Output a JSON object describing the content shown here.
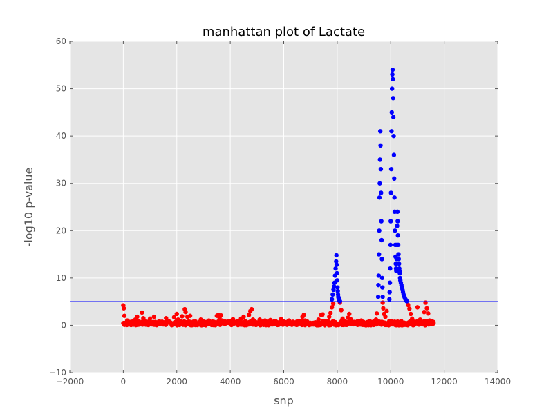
{
  "chart_data": {
    "type": "scatter",
    "title": "manhattan plot of Lactate",
    "xlabel": "snp",
    "ylabel": "-log10 p-value",
    "xlim": [
      -2000,
      14000
    ],
    "ylim": [
      -10,
      60
    ],
    "xticks": [
      "−2000",
      "0",
      "2000",
      "4000",
      "6000",
      "8000",
      "10000",
      "12000",
      "14000"
    ],
    "yticks": [
      "−10",
      "0",
      "10",
      "20",
      "30",
      "40",
      "50",
      "60"
    ],
    "xtick_values": [
      -2000,
      0,
      2000,
      4000,
      6000,
      8000,
      10000,
      12000,
      14000
    ],
    "ytick_values": [
      -10,
      0,
      10,
      20,
      30,
      40,
      50,
      60
    ],
    "grid": true,
    "threshold": 5,
    "colors": {
      "below_threshold": "#ff0000",
      "above_threshold": "#0000ff",
      "threshold_line": "#0000ff",
      "plot_background": "#e5e5e5",
      "grid": "#ffffff"
    },
    "series": [
      {
        "color": "red",
        "x": [
          0,
          20,
          40,
          80,
          150,
          250,
          350,
          450,
          520,
          600,
          700,
          750,
          800,
          900,
          1000,
          1100,
          1150,
          1200,
          1300,
          1400,
          1500,
          1600,
          1700,
          1800,
          1900,
          2000,
          2050,
          2100,
          2200,
          2300,
          2330,
          2400,
          2450,
          2500,
          2600,
          2700,
          2800,
          2900,
          3000,
          3100,
          3200,
          3300,
          3400,
          3500,
          3550,
          3600,
          3650,
          3700,
          3800,
          3900,
          4000,
          4100,
          4200,
          4300,
          4400,
          4500,
          4600,
          4700,
          4750,
          4800,
          4850,
          4900,
          5000,
          5100,
          5200,
          5300,
          5400,
          5500,
          5600,
          5700,
          5800,
          5900,
          6000,
          6100,
          6200,
          6300,
          6400,
          6500,
          6600,
          6700,
          6750,
          6800,
          6900,
          7000,
          7100,
          7200,
          7300,
          7400,
          7450,
          7500,
          7600,
          7700,
          7750,
          7800,
          7850,
          8100,
          8150,
          8200,
          8300,
          8400,
          8450,
          8500,
          8550,
          8600,
          8700,
          8800,
          8850,
          8900,
          9000,
          9100,
          9200,
          9300,
          9400,
          9450,
          9480,
          9700,
          9720,
          9750,
          9800,
          9850,
          10650,
          10700,
          10750,
          10800,
          10850,
          10900,
          10950,
          11000,
          11100,
          11200,
          11250,
          11300,
          11350,
          11400,
          11450,
          11500,
          11550,
          11600
        ],
        "y": [
          4.2,
          3.6,
          2.0,
          0.5,
          1.0,
          0.3,
          0.8,
          1.2,
          1.8,
          0.6,
          2.7,
          1.5,
          0.9,
          0.6,
          1.4,
          0.2,
          1.8,
          0.7,
          0.3,
          0.4,
          0.2,
          1.5,
          0.8,
          0.3,
          1.7,
          2.4,
          1.2,
          0.4,
          1.9,
          3.4,
          2.8,
          1.8,
          0.6,
          2.0,
          0.3,
          0.8,
          0.2,
          1.2,
          0.8,
          0.3,
          1.0,
          0.4,
          0.7,
          2.0,
          2.2,
          1.6,
          2.1,
          1.0,
          0.3,
          0.8,
          0.6,
          1.3,
          0.5,
          0.9,
          1.4,
          1.8,
          0.4,
          2.2,
          3.0,
          3.4,
          1.2,
          0.3,
          0.6,
          1.2,
          0.4,
          1.0,
          0.6,
          1.1,
          0.3,
          0.8,
          0.5,
          1.3,
          0.7,
          0.3,
          1.0,
          0.5,
          0.2,
          0.8,
          0.4,
          1.8,
          2.2,
          1.0,
          0.3,
          0.5,
          0.2,
          0.6,
          1.2,
          2.2,
          2.3,
          0.8,
          0.6,
          1.8,
          2.6,
          3.8,
          4.6,
          4.8,
          3.2,
          1.4,
          0.8,
          1.6,
          2.4,
          1.3,
          0.7,
          0.3,
          0.5,
          0.8,
          0.2,
          1.0,
          0.6,
          0.2,
          0.9,
          0.4,
          0.3,
          1.2,
          2.5,
          4.8,
          3.6,
          2.4,
          1.8,
          3.0,
          4.3,
          3.5,
          2.4,
          1.4,
          0.8,
          0.2,
          0.5,
          3.8,
          1.2,
          0.6,
          2.8,
          4.8,
          3.6,
          2.5,
          1.0,
          0.6,
          0.8,
          0.4
        ],
        "band": [
          {
            "x0": 0,
            "x1": 11600,
            "y0": 0,
            "y1": 0.9,
            "count": 520
          }
        ]
      },
      {
        "color": "blue",
        "x": [
          7800,
          7830,
          7860,
          7880,
          7900,
          7920,
          7940,
          7960,
          7970,
          7980,
          7990,
          8000,
          8010,
          8020,
          8030,
          8040,
          8050,
          8060,
          8080,
          8100,
          9530,
          9540,
          9550,
          9560,
          9570,
          9580,
          9590,
          9600,
          9610,
          9620,
          9630,
          9640,
          9650,
          9660,
          9670,
          9680,
          9690,
          9700,
          9950,
          9960,
          9970,
          9980,
          9990,
          10000,
          10010,
          10020,
          10030,
          10040,
          10050,
          10060,
          10070,
          10080,
          10090,
          10100,
          10110,
          10120,
          10130,
          10140,
          10150,
          10160,
          10170,
          10180,
          10190,
          10200,
          10210,
          10220,
          10230,
          10240,
          10250,
          10260,
          10270,
          10280,
          10290,
          10300,
          10310,
          10320,
          10330,
          10340,
          10350,
          10360,
          10380,
          10400,
          10420,
          10440,
          10460,
          10480,
          10500,
          10520,
          10540,
          10560,
          10580,
          10600
        ],
        "y": [
          5.5,
          6.5,
          7.5,
          8.2,
          9.0,
          10.5,
          12.0,
          13.5,
          14.8,
          12.8,
          11.0,
          9.5,
          8.0,
          7.2,
          6.5,
          6.0,
          5.8,
          5.5,
          5.3,
          5.1,
          6.0,
          8.5,
          10.5,
          15.0,
          20.0,
          27.0,
          30.0,
          35.0,
          41.0,
          38.0,
          33.0,
          28.0,
          22.0,
          18.0,
          14.0,
          10.0,
          8.0,
          6.0,
          5.5,
          7.0,
          9.0,
          12.0,
          17.0,
          22.0,
          28.0,
          33.0,
          41.0,
          45.0,
          50.0,
          53.0,
          54.0,
          52.0,
          48.0,
          44.0,
          40.0,
          36.0,
          31.0,
          27.0,
          24.0,
          20.0,
          17.0,
          14.5,
          13.0,
          12.0,
          11.5,
          14.0,
          17.0,
          21.0,
          24.0,
          22.0,
          19.0,
          17.0,
          15.0,
          14.0,
          13.0,
          12.0,
          11.5,
          11.0,
          10.0,
          9.5,
          9.0,
          8.5,
          8.0,
          7.5,
          7.0,
          6.5,
          6.2,
          5.9,
          5.6,
          5.4,
          5.2,
          5.1
        ]
      }
    ]
  }
}
